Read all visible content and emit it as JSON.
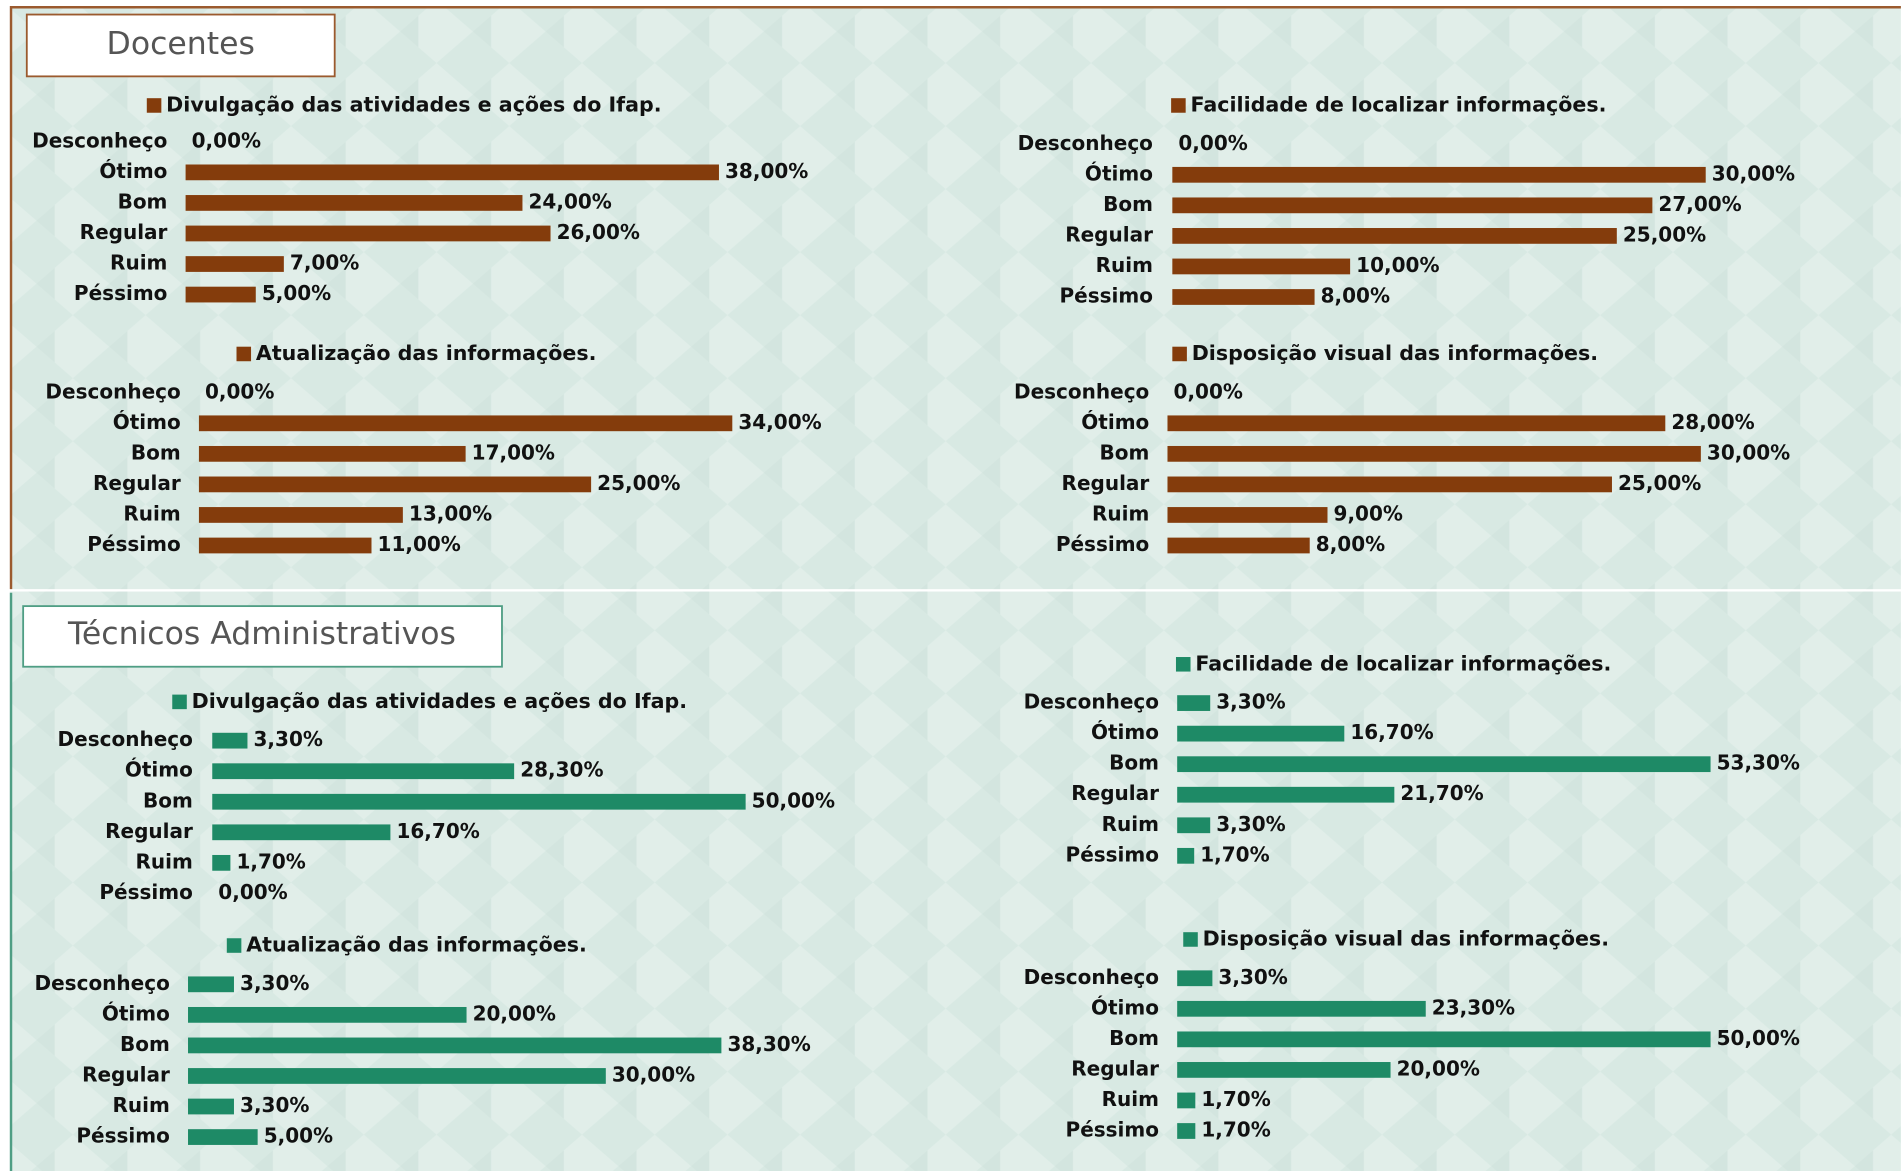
{
  "sections": [
    {
      "title": "Docentes"
    },
    {
      "title": "Técnicos Administrativos"
    }
  ],
  "chart_data": [
    {
      "type": "bar",
      "orientation": "horizontal",
      "title": "Divulgação das atividades e ações do Ifap.",
      "color": "#843c0c",
      "categories": [
        "Desconheço",
        "Ótimo",
        "Bom",
        "Regular",
        "Ruim",
        "Péssimo"
      ],
      "values": [
        0,
        38,
        24,
        26,
        7,
        5
      ],
      "value_labels": [
        "0,00%",
        "38,00%",
        "24,00%",
        "26,00%",
        "7,00%",
        "5,00%"
      ]
    },
    {
      "type": "bar",
      "orientation": "horizontal",
      "title": "Facilidade de localizar informações.",
      "color": "#843c0c",
      "categories": [
        "Desconheço",
        "Ótimo",
        "Bom",
        "Regular",
        "Ruim",
        "Péssimo"
      ],
      "values": [
        0,
        30,
        27,
        25,
        10,
        8
      ],
      "value_labels": [
        "0,00%",
        "30,00%",
        "27,00%",
        "25,00%",
        "10,00%",
        "8,00%"
      ]
    },
    {
      "type": "bar",
      "orientation": "horizontal",
      "title": "Atualização das informações.",
      "color": "#843c0c",
      "categories": [
        "Desconheço",
        "Ótimo",
        "Bom",
        "Regular",
        "Ruim",
        "Péssimo"
      ],
      "values": [
        0,
        34,
        17,
        25,
        13,
        11
      ],
      "value_labels": [
        "0,00%",
        "34,00%",
        "17,00%",
        "25,00%",
        "13,00%",
        "11,00%"
      ]
    },
    {
      "type": "bar",
      "orientation": "horizontal",
      "title": "Disposição visual das informações.",
      "color": "#843c0c",
      "categories": [
        "Desconheço",
        "Ótimo",
        "Bom",
        "Regular",
        "Ruim",
        "Péssimo"
      ],
      "values": [
        0,
        28,
        30,
        25,
        9,
        8
      ],
      "value_labels": [
        "0,00%",
        "28,00%",
        "30,00%",
        "25,00%",
        "9,00%",
        "8,00%"
      ]
    },
    {
      "type": "bar",
      "orientation": "horizontal",
      "title": "Divulgação das atividades e ações do Ifap.",
      "color": "#1e8a66",
      "categories": [
        "Desconheço",
        "Ótimo",
        "Bom",
        "Regular",
        "Ruim",
        "Péssimo"
      ],
      "values": [
        3.3,
        28.3,
        50,
        16.7,
        1.7,
        0
      ],
      "value_labels": [
        "3,30%",
        "28,30%",
        "50,00%",
        "16,70%",
        "1,70%",
        "0,00%"
      ]
    },
    {
      "type": "bar",
      "orientation": "horizontal",
      "title": "Facilidade de localizar informações.",
      "color": "#1e8a66",
      "categories": [
        "Desconheço",
        "Ótimo",
        "Bom",
        "Regular",
        "Ruim",
        "Péssimo"
      ],
      "values": [
        3.3,
        16.7,
        53.3,
        21.7,
        3.3,
        1.7
      ],
      "value_labels": [
        "3,30%",
        "16,70%",
        "53,30%",
        "21,70%",
        "3,30%",
        "1,70%"
      ]
    },
    {
      "type": "bar",
      "orientation": "horizontal",
      "title": "Atualização das informações.",
      "color": "#1e8a66",
      "categories": [
        "Desconheço",
        "Ótimo",
        "Bom",
        "Regular",
        "Ruim",
        "Péssimo"
      ],
      "values": [
        3.3,
        20,
        38.3,
        30,
        3.3,
        5
      ],
      "value_labels": [
        "3,30%",
        "20,00%",
        "38,30%",
        "30,00%",
        "3,30%",
        "5,00%"
      ]
    },
    {
      "type": "bar",
      "orientation": "horizontal",
      "title": "Disposição visual das informações.",
      "color": "#1e8a66",
      "categories": [
        "Desconheço",
        "Ótimo",
        "Bom",
        "Regular",
        "Ruim",
        "Péssimo"
      ],
      "values": [
        3.3,
        23.3,
        50,
        20,
        1.7,
        1.7
      ],
      "value_labels": [
        "3,30%",
        "23,30%",
        "50,00%",
        "20,00%",
        "1,70%",
        "1,70%"
      ]
    }
  ]
}
